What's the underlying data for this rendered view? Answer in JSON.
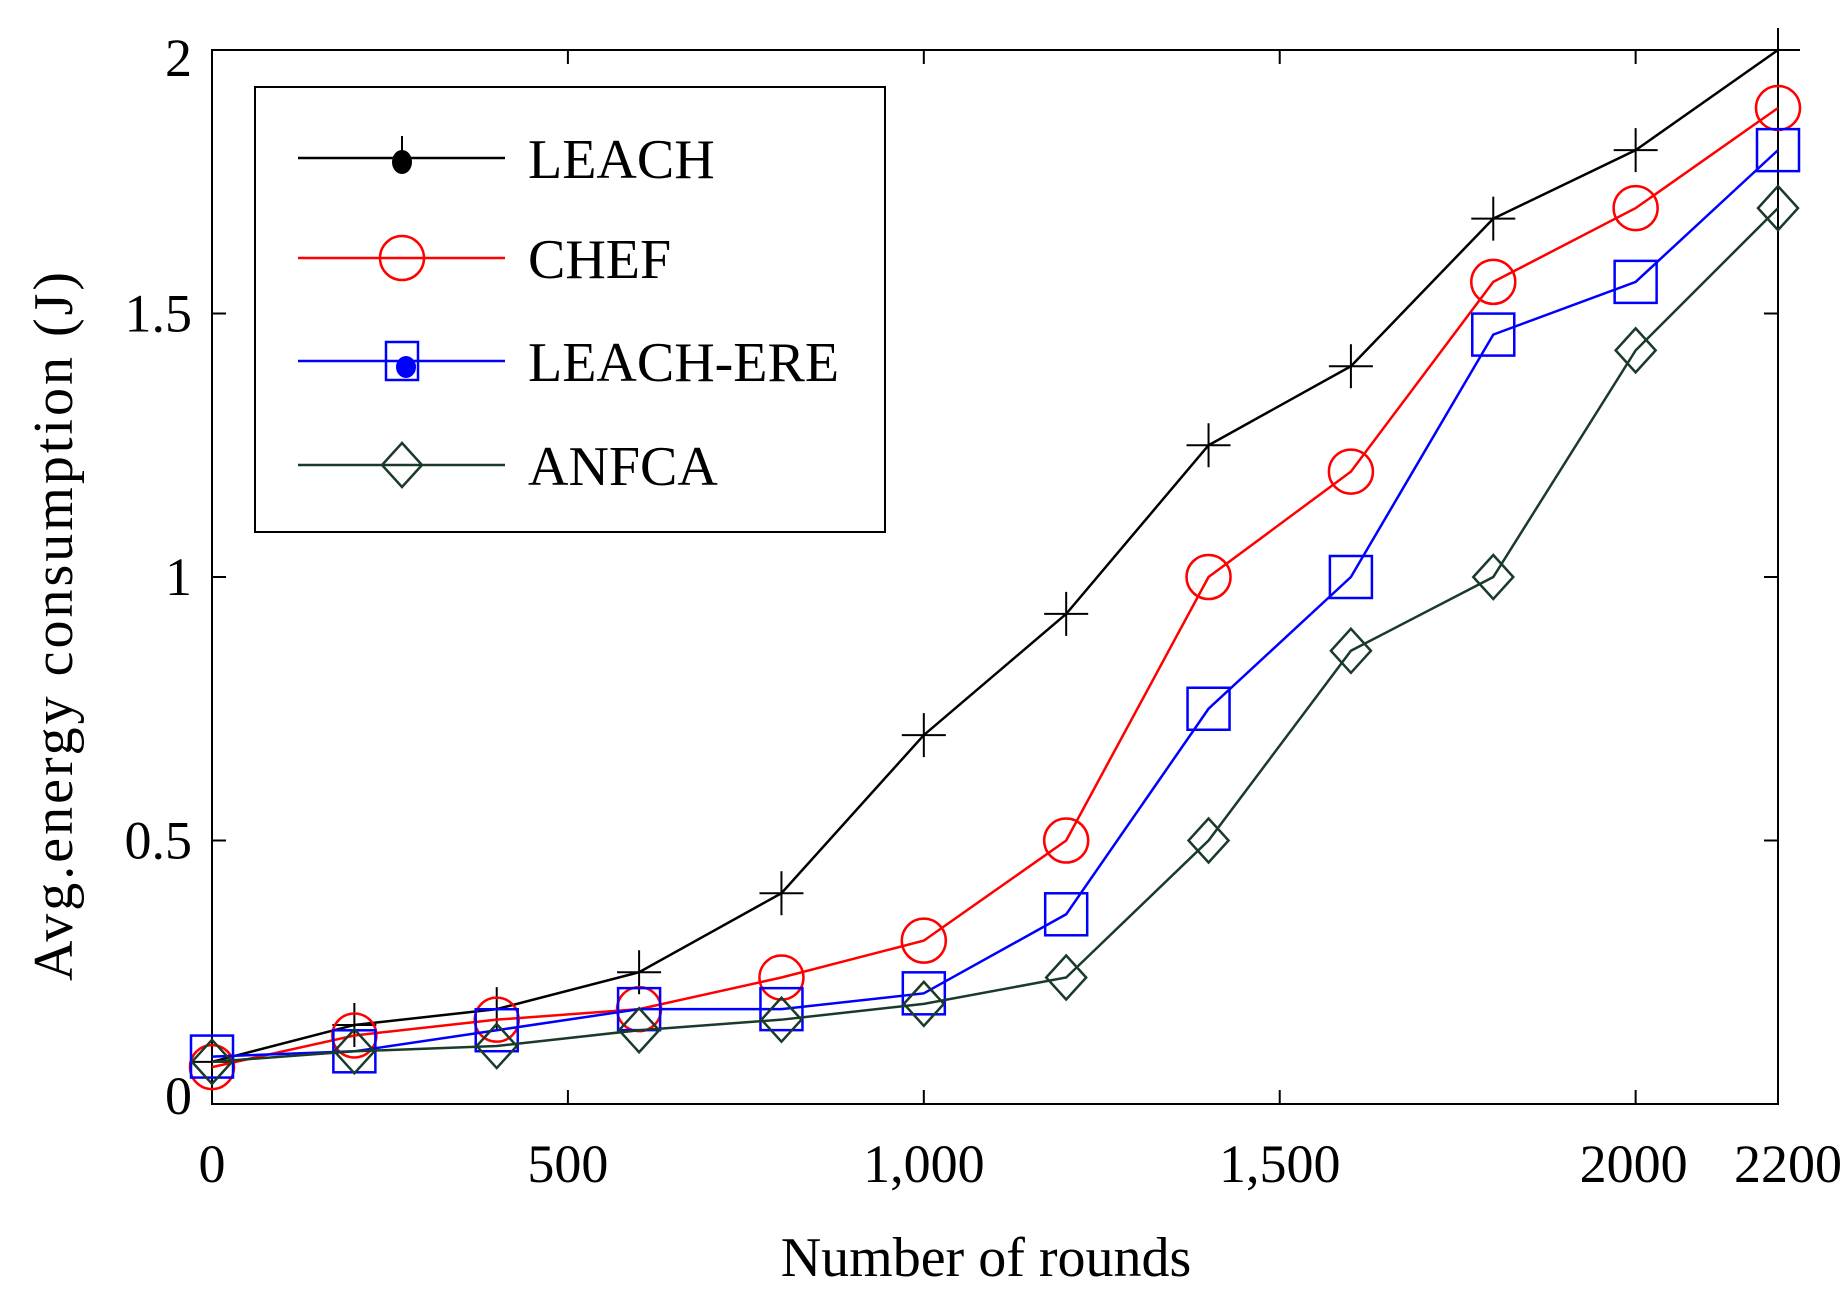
{
  "chart_data": {
    "type": "line",
    "title": "",
    "xlabel": "Number of rounds",
    "ylabel": "Avg.energy consumption  (J)",
    "xlim": [
      0,
      2200
    ],
    "ylim": [
      0,
      2
    ],
    "x": [
      0,
      200,
      400,
      600,
      800,
      1000,
      1200,
      1400,
      1600,
      1800,
      2000,
      2200
    ],
    "x_ticks": [
      {
        "value": 0,
        "label": "0"
      },
      {
        "value": 500,
        "label": "500"
      },
      {
        "value": 1000,
        "label": "1,000"
      },
      {
        "value": 1500,
        "label": "1,500"
      },
      {
        "value": 2000,
        "label": "2000"
      },
      {
        "value": 2200,
        "label": "2200"
      }
    ],
    "y_ticks": [
      {
        "value": 0,
        "label": "0"
      },
      {
        "value": 0.5,
        "label": "0.5"
      },
      {
        "value": 1,
        "label": "1"
      },
      {
        "value": 1.5,
        "label": "1.5"
      },
      {
        "value": 2,
        "label": "2"
      }
    ],
    "legend_position": "top-left",
    "series": [
      {
        "name": "LEACH",
        "color": "#000000",
        "marker": "plus",
        "legend_marker": "dot",
        "values": [
          0.08,
          0.15,
          0.18,
          0.25,
          0.4,
          0.7,
          0.93,
          1.25,
          1.4,
          1.68,
          1.81,
          2.0
        ]
      },
      {
        "name": "CHEF",
        "color": "#ff0000",
        "marker": "circle",
        "legend_marker": "circle",
        "values": [
          0.07,
          0.13,
          0.16,
          0.18,
          0.24,
          0.31,
          0.5,
          1.0,
          1.2,
          1.56,
          1.7,
          1.89
        ]
      },
      {
        "name": "LEACH-ERE",
        "color": "#0000ff",
        "marker": "square",
        "legend_marker": "square-dot",
        "values": [
          0.09,
          0.1,
          0.14,
          0.18,
          0.18,
          0.21,
          0.36,
          0.75,
          1.0,
          1.46,
          1.56,
          1.81
        ]
      },
      {
        "name": "ANFCA",
        "color": "#1a3a2a",
        "marker": "diamond",
        "legend_marker": "diamond",
        "values": [
          0.08,
          0.1,
          0.11,
          0.14,
          0.16,
          0.19,
          0.24,
          0.5,
          0.86,
          1.0,
          1.43,
          1.7
        ]
      }
    ]
  }
}
